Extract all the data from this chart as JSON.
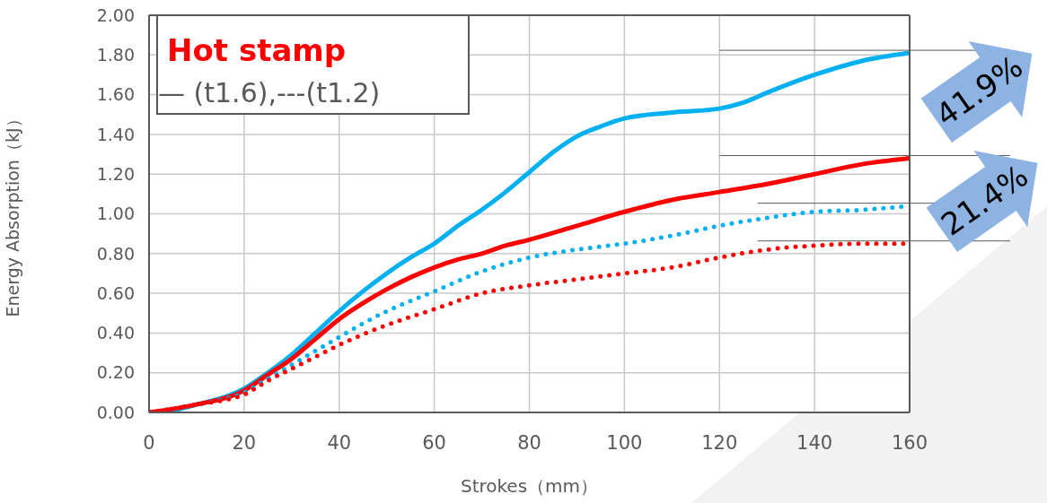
{
  "chart_data": {
    "type": "line",
    "xlabel": "Strokes（mm）",
    "ylabel": "Energy Absorption（kJ）",
    "xlim": [
      0,
      160
    ],
    "xticks": [
      0,
      20,
      40,
      60,
      80,
      100,
      120,
      140,
      160
    ],
    "ylim": [
      0,
      2
    ],
    "yticks": [
      {
        "value": 0,
        "label": "0.00"
      },
      {
        "value": 0.2,
        "label": "0.20"
      },
      {
        "value": 0.4,
        "label": "0.40"
      },
      {
        "value": 0.6,
        "label": "0.60"
      },
      {
        "value": 0.8,
        "label": "0.80"
      },
      {
        "value": 1,
        "label": "1.00"
      },
      {
        "value": 1.2,
        "label": "1.20"
      },
      {
        "value": 1.4,
        "label": "1.40"
      },
      {
        "value": 1.6,
        "label": "1.60"
      },
      {
        "value": 1.8,
        "label": "1.80"
      },
      {
        "value": 2,
        "label": "2.00"
      }
    ],
    "grid": true,
    "marker": "none",
    "series": [
      {
        "color": "#00b0f0",
        "line_style": "solid",
        "x": [
          0,
          5,
          10,
          15,
          20,
          25,
          30,
          35,
          40,
          45,
          50,
          55,
          60,
          65,
          70,
          75,
          80,
          85,
          90,
          95,
          100,
          110,
          120,
          125,
          130,
          140,
          150,
          160
        ],
        "values": [
          0,
          0.01,
          0.04,
          0.07,
          0.12,
          0.2,
          0.29,
          0.4,
          0.51,
          0.61,
          0.7,
          0.78,
          0.85,
          0.94,
          1.02,
          1.11,
          1.21,
          1.31,
          1.39,
          1.44,
          1.48,
          1.51,
          1.53,
          1.56,
          1.61,
          1.7,
          1.77,
          1.81
        ]
      },
      {
        "color": "#ff0000",
        "line_style": "solid",
        "x": [
          0,
          10,
          20,
          25,
          30,
          35,
          40,
          45,
          50,
          55,
          60,
          65,
          70,
          75,
          80,
          90,
          100,
          110,
          120,
          130,
          140,
          150,
          160
        ],
        "values": [
          0,
          0.04,
          0.11,
          0.19,
          0.27,
          0.37,
          0.47,
          0.55,
          0.62,
          0.68,
          0.73,
          0.77,
          0.8,
          0.84,
          0.87,
          0.94,
          1.01,
          1.07,
          1.11,
          1.15,
          1.2,
          1.25,
          1.28
        ]
      },
      {
        "color": "#00b0f0",
        "line_style": "dotted",
        "x": [
          0,
          10,
          20,
          25,
          30,
          35,
          40,
          50,
          60,
          70,
          80,
          90,
          100,
          110,
          120,
          130,
          140,
          150,
          160
        ],
        "values": [
          0,
          0.04,
          0.1,
          0.17,
          0.24,
          0.31,
          0.38,
          0.51,
          0.61,
          0.71,
          0.78,
          0.82,
          0.85,
          0.89,
          0.94,
          0.98,
          1.01,
          1.02,
          1.04
        ]
      },
      {
        "color": "#ff0000",
        "line_style": "dotted",
        "x": [
          0,
          10,
          20,
          25,
          30,
          35,
          40,
          50,
          60,
          70,
          80,
          90,
          100,
          110,
          120,
          130,
          140,
          150,
          160
        ],
        "values": [
          0,
          0.04,
          0.09,
          0.16,
          0.22,
          0.28,
          0.34,
          0.44,
          0.52,
          0.6,
          0.64,
          0.67,
          0.7,
          0.73,
          0.78,
          0.82,
          0.84,
          0.85,
          0.85
        ]
      }
    ],
    "annotations": [
      "Hot stamp",
      "— (t1.6),---(t1.2)",
      "41.9%",
      "21.4%"
    ]
  }
}
